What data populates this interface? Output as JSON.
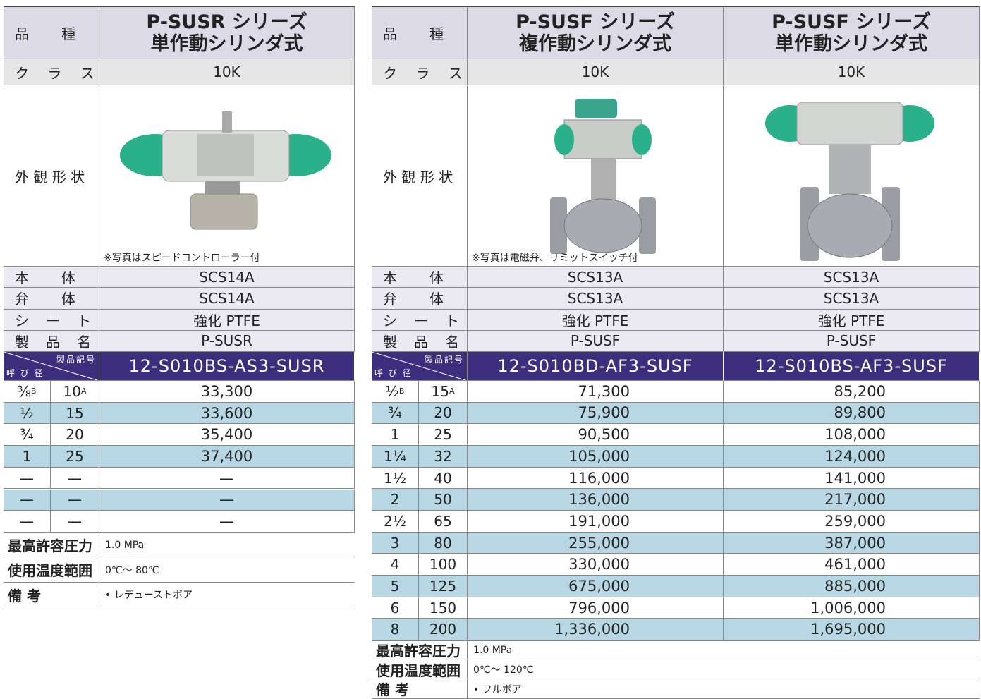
{
  "tables": [
    {
      "header_label": "品　　種",
      "class_label": "ク ラ ス",
      "appearance_label": "外 観 形 状",
      "columns": [
        {
          "title": [
            "P-SUSR シリーズ",
            "単作動シリンダ式"
          ],
          "class": "10K",
          "note": "※写真はスピードコントローラー付",
          "code": "12-S010BS-AS3-SUSR"
        }
      ],
      "specs": [
        {
          "label": "本　　体",
          "values": [
            "SCS14A"
          ]
        },
        {
          "label": "弁　　体",
          "values": [
            "SCS14A"
          ]
        },
        {
          "label": "シ　ー　ト",
          "values": [
            "強化 PTFE"
          ]
        },
        {
          "label": "製　品　名",
          "values": [
            "P-SUSR"
          ]
        }
      ],
      "code_label": "製品記号",
      "size_label": "呼 び 径",
      "rows": [
        {
          "inch": "⅜",
          "inch_unit": "B",
          "mm": "10",
          "mm_unit": "A",
          "prices": [
            "33,300"
          ]
        },
        {
          "inch": "½",
          "mm": "15",
          "prices": [
            "33,600"
          ]
        },
        {
          "inch": "¾",
          "mm": "20",
          "prices": [
            "35,400"
          ]
        },
        {
          "inch": "1",
          "mm": "25",
          "prices": [
            "37,400"
          ]
        },
        {
          "inch": "—",
          "mm": "—",
          "prices": [
            "—"
          ]
        },
        {
          "inch": "—",
          "mm": "—",
          "prices": [
            "—"
          ]
        },
        {
          "inch": "—",
          "mm": "—",
          "prices": [
            "—"
          ]
        }
      ],
      "notes": [
        {
          "label": "最高許容圧力",
          "value": "1.0 MPa"
        },
        {
          "label": "使用温度範囲",
          "value": "0℃～ 80℃"
        },
        {
          "label": "備 考",
          "value": "• レデューストボア"
        }
      ]
    },
    {
      "header_label": "品　　種",
      "class_label": "ク ラ ス",
      "appearance_label": "外 観 形 状",
      "columns": [
        {
          "title": [
            "P-SUSF シリーズ",
            "複作動シリンダ式"
          ],
          "class": "10K",
          "note": "※写真は電磁弁、リミットスイッチ付",
          "code": "12-S010BD-AF3-SUSF"
        },
        {
          "title": [
            "P-SUSF シリーズ",
            "単作動シリンダ式"
          ],
          "class": "10K",
          "code": "12-S010BS-AF3-SUSF"
        }
      ],
      "specs": [
        {
          "label": "本　　体",
          "values": [
            "SCS13A",
            "SCS13A"
          ]
        },
        {
          "label": "弁　　体",
          "values": [
            "SCS13A",
            "SCS13A"
          ]
        },
        {
          "label": "シ　ー　ト",
          "values": [
            "強化 PTFE",
            "強化 PTFE"
          ]
        },
        {
          "label": "製　品　名",
          "values": [
            "P-SUSF",
            "P-SUSF"
          ]
        }
      ],
      "code_label": "製品記号",
      "size_label": "呼 び 径",
      "rows": [
        {
          "inch": "½",
          "inch_unit": "B",
          "mm": "15",
          "mm_unit": "A",
          "prices": [
            "71,300",
            "85,200"
          ]
        },
        {
          "inch": "¾",
          "mm": "20",
          "prices": [
            "75,900",
            "89,800"
          ]
        },
        {
          "inch": "1",
          "mm": "25",
          "prices": [
            "90,500",
            "108,000"
          ]
        },
        {
          "inch": "1¼",
          "mm": "32",
          "prices": [
            "105,000",
            "124,000"
          ]
        },
        {
          "inch": "1½",
          "mm": "40",
          "prices": [
            "116,000",
            "141,000"
          ]
        },
        {
          "inch": "2",
          "mm": "50",
          "prices": [
            "136,000",
            "217,000"
          ]
        },
        {
          "inch": "2½",
          "mm": "65",
          "prices": [
            "191,000",
            "259,000"
          ]
        },
        {
          "inch": "3",
          "mm": "80",
          "prices": [
            "255,000",
            "387,000"
          ]
        },
        {
          "inch": "4",
          "mm": "100",
          "prices": [
            "330,000",
            "461,000"
          ]
        },
        {
          "inch": "5",
          "mm": "125",
          "prices": [
            "675,000",
            "885,000"
          ]
        },
        {
          "inch": "6",
          "mm": "150",
          "prices": [
            "796,000",
            "1,006,000"
          ]
        },
        {
          "inch": "8",
          "mm": "200",
          "prices": [
            "1,336,000",
            "1,695,000"
          ]
        }
      ],
      "notes": [
        {
          "label": "最高許容圧力",
          "value": "1.0 MPa"
        },
        {
          "label": "使用温度範囲",
          "value": "0℃～ 120℃"
        },
        {
          "label": "備 考",
          "value": "• フルボア"
        }
      ]
    }
  ]
}
